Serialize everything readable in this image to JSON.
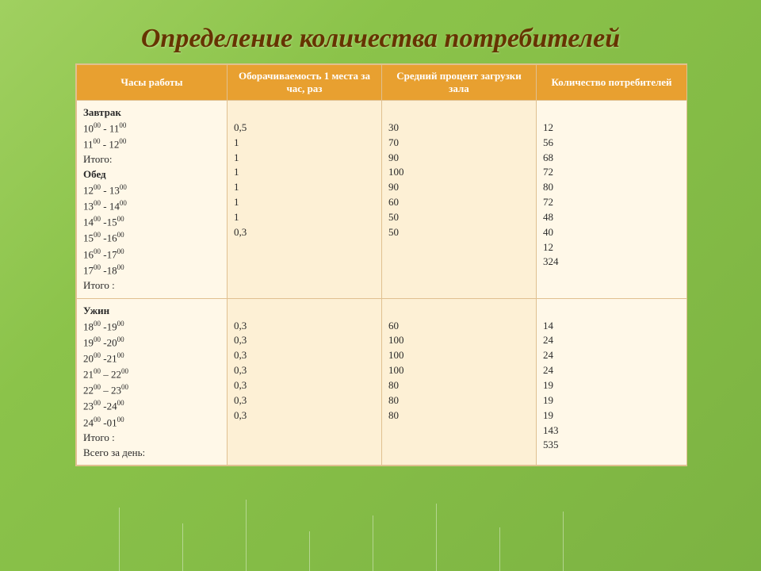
{
  "title": "Определение количества потребителей",
  "headers": [
    "Часы работы",
    "Оборачиваемость 1 места за час, раз",
    "Средний процент загрузки зала",
    "Количество потребителей"
  ],
  "widths": [
    190,
    195,
    195,
    190
  ],
  "header_bg": "#e8a030",
  "header_color": "#ffffff",
  "cell_bg_alt": [
    "#fff8e8",
    "#fdf0d5",
    "#fdf0d5",
    "#fff8e8"
  ],
  "text_color": "#2a2a2a",
  "title_color": "#663300",
  "block1": {
    "hours_lines": [
      {
        "t": "Завтрак",
        "b": true
      },
      {
        "t": "10^00 - 11^00"
      },
      {
        "t": "11^00 - 12^00"
      },
      {
        "t": "Итого:"
      },
      {
        "t": "Обед",
        "b": true
      },
      {
        "t": "12^00 - 13^00"
      },
      {
        "t": "13^00 - 14^00"
      },
      {
        "t": "14^00 -15^00"
      },
      {
        "t": "15^00 -16^00"
      },
      {
        "t": "16^00 -17^00"
      },
      {
        "t": "17^00 -18^00"
      },
      {
        "t": "Итого :"
      }
    ],
    "turnover": [
      "0,5",
      "1",
      "1",
      "1",
      "1",
      "1",
      "1",
      "0,3"
    ],
    "load": [
      "30",
      "70",
      "90",
      "100",
      "90",
      "60",
      "50",
      "50"
    ],
    "consumers": [
      "12",
      "56",
      "68",
      "72",
      "80",
      "72",
      "48",
      "40",
      "12",
      "324"
    ]
  },
  "block2": {
    "hours_lines": [
      {
        "t": "Ужин",
        "b": true
      },
      {
        "t": "18^00 -19^00"
      },
      {
        "t": "19^00 -20^00"
      },
      {
        "t": "20^00 -21^00"
      },
      {
        "t": "21^00 – 22^00"
      },
      {
        "t": "22^00 – 23^00"
      },
      {
        "t": "23^00 -24^00"
      },
      {
        "t": "24^00 -01^00"
      },
      {
        "t": "Итого :"
      },
      {
        "t": "Всего за день:"
      }
    ],
    "turnover": [
      "0,3",
      "0,3",
      "0,3",
      "0,3",
      "0,3",
      "0,3",
      "0,3"
    ],
    "load": [
      "60",
      "100",
      "100",
      "100",
      "80",
      "80",
      "80"
    ],
    "consumers": [
      "14",
      "24",
      "24",
      "24",
      "19",
      "19",
      "19",
      "143",
      "535"
    ]
  }
}
